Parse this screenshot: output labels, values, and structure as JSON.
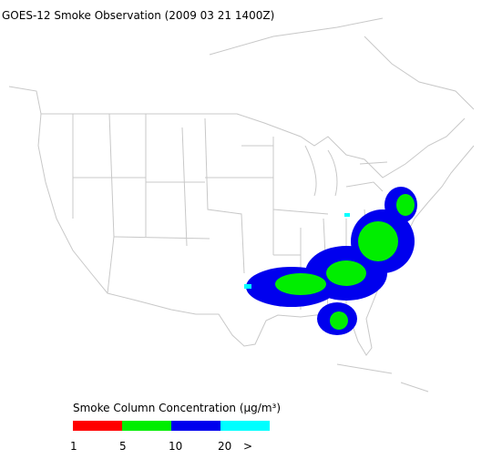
{
  "title": "GOES-12 Smoke Observation (2009 03 21  1400Z)",
  "legend": {
    "title": "Smoke Column Concentration (μg/m³)",
    "colors": [
      "#ff0000",
      "#00ee00",
      "#0000ee",
      "#00ffff"
    ],
    "labels": [
      "1",
      "5",
      "10",
      "20",
      ">"
    ]
  }
}
